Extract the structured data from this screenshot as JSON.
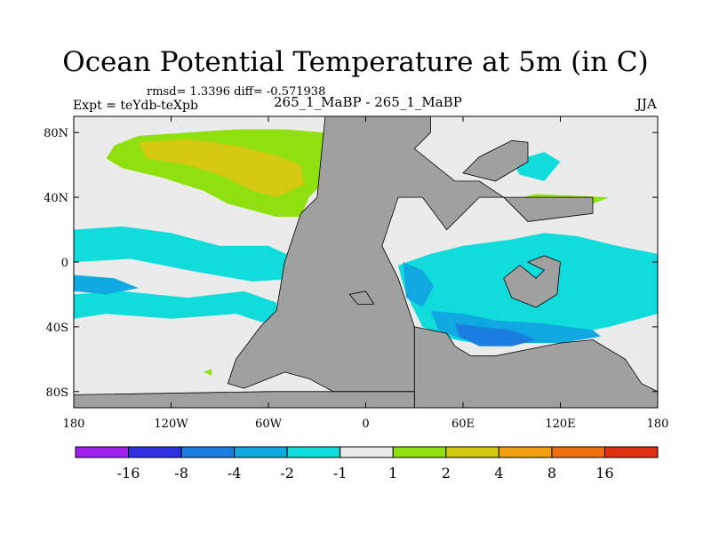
{
  "chart_data": {
    "type": "heatmap",
    "title": "Ocean Potential Temperature at 5m (in C)",
    "stats_text": "rmsd= 1.3396  diff= -0.571938",
    "left_label": "Expt = teYdb-teXpb",
    "center_label": "265_1_MaBP - 265_1_MaBP",
    "right_label": "JJA",
    "xlim": [
      -180,
      180
    ],
    "ylim": [
      -90,
      90
    ],
    "x_ticks": [
      {
        "value": -180,
        "label": "180"
      },
      {
        "value": -120,
        "label": "120W"
      },
      {
        "value": -60,
        "label": "60W"
      },
      {
        "value": 0,
        "label": "0"
      },
      {
        "value": 60,
        "label": "60E"
      },
      {
        "value": 120,
        "label": "120E"
      },
      {
        "value": 180,
        "label": "180"
      }
    ],
    "y_ticks": [
      {
        "value": 80,
        "label": "80N"
      },
      {
        "value": 40,
        "label": "40N"
      },
      {
        "value": 0,
        "label": "0"
      },
      {
        "value": -40,
        "label": "40S"
      },
      {
        "value": -80,
        "label": "80S"
      }
    ],
    "colorbar": {
      "boundaries": [
        -16,
        -8,
        -4,
        -2,
        -1,
        1,
        2,
        4,
        8,
        16
      ],
      "labels": [
        "-16",
        "-8",
        "-4",
        "-2",
        "-1",
        "1",
        "2",
        "4",
        "8",
        "16"
      ],
      "colors": [
        "#a020f0",
        "#3030e0",
        "#1a7ee0",
        "#10a8e0",
        "#10dcdc",
        "#ebebeb",
        "#90e010",
        "#d4c810",
        "#f0a010",
        "#f07010",
        "#e03010"
      ]
    },
    "colors": {
      "land": "#a0a0a0",
      "neutral": "#ebebeb",
      "diff_1_2": "#90e010",
      "diff_2_4": "#d4c810",
      "diff_m2_m1": "#10dcdc",
      "diff_m4_m2": "#10a8e0",
      "diff_m8_m4": "#1a7ee0"
    },
    "regions": [
      {
        "name": "north-pacific-warm",
        "level": "1 to 2",
        "points": [
          [
            -155,
            72
          ],
          [
            -140,
            78
          ],
          [
            -110,
            80
          ],
          [
            -80,
            82
          ],
          [
            -50,
            82
          ],
          [
            -25,
            80
          ],
          [
            -10,
            72
          ],
          [
            -8,
            62
          ],
          [
            -25,
            50
          ],
          [
            -35,
            40
          ],
          [
            -40,
            28
          ],
          [
            -55,
            28
          ],
          [
            -85,
            36
          ],
          [
            -100,
            44
          ],
          [
            -125,
            52
          ],
          [
            -150,
            58
          ],
          [
            -160,
            64
          ]
        ]
      },
      {
        "name": "north-pacific-hot",
        "level": "2 to 4",
        "points": [
          [
            -140,
            74
          ],
          [
            -110,
            76
          ],
          [
            -80,
            72
          ],
          [
            -55,
            66
          ],
          [
            -40,
            60
          ],
          [
            -38,
            48
          ],
          [
            -55,
            40
          ],
          [
            -70,
            44
          ],
          [
            -90,
            54
          ],
          [
            -110,
            60
          ],
          [
            -135,
            64
          ]
        ]
      },
      {
        "name": "east-pacific-cool",
        "level": "-2 to -1",
        "points": [
          [
            -180,
            20
          ],
          [
            -150,
            22
          ],
          [
            -120,
            18
          ],
          [
            -90,
            10
          ],
          [
            -60,
            10
          ],
          [
            -38,
            0
          ],
          [
            -40,
            -10
          ],
          [
            -70,
            -12
          ],
          [
            -110,
            -5
          ],
          [
            -145,
            2
          ],
          [
            -180,
            0
          ]
        ]
      },
      {
        "name": "south-pacific-cool",
        "level": "-2 to -1",
        "points": [
          [
            -180,
            -20
          ],
          [
            -150,
            -18
          ],
          [
            -110,
            -22
          ],
          [
            -75,
            -18
          ],
          [
            -55,
            -25
          ],
          [
            -55,
            -40
          ],
          [
            -80,
            -32
          ],
          [
            -120,
            -35
          ],
          [
            -160,
            -32
          ],
          [
            -180,
            -35
          ]
        ]
      },
      {
        "name": "west-atlantic-cool",
        "level": "-4 to -2",
        "points": [
          [
            -180,
            -8
          ],
          [
            -155,
            -10
          ],
          [
            -140,
            -16
          ],
          [
            -160,
            -20
          ],
          [
            -180,
            -18
          ]
        ]
      },
      {
        "name": "indian-ocean-cool",
        "level": "-2 to -1",
        "points": [
          [
            20,
            -2
          ],
          [
            40,
            5
          ],
          [
            60,
            10
          ],
          [
            90,
            14
          ],
          [
            110,
            18
          ],
          [
            130,
            16
          ],
          [
            155,
            10
          ],
          [
            180,
            5
          ],
          [
            180,
            -32
          ],
          [
            150,
            -40
          ],
          [
            110,
            -48
          ],
          [
            80,
            -52
          ],
          [
            55,
            -48
          ],
          [
            35,
            -40
          ],
          [
            30,
            -30
          ],
          [
            25,
            -20
          ],
          [
            22,
            -10
          ]
        ]
      },
      {
        "name": "indian-ocean-colder",
        "level": "-4 to -2",
        "points": [
          [
            23,
            0
          ],
          [
            35,
            -5
          ],
          [
            42,
            -15
          ],
          [
            35,
            -28
          ],
          [
            25,
            -22
          ]
        ]
      },
      {
        "name": "southern-indian-colder",
        "level": "-4 to -2",
        "points": [
          [
            40,
            -30
          ],
          [
            60,
            -32
          ],
          [
            80,
            -36
          ],
          [
            110,
            -38
          ],
          [
            140,
            -42
          ],
          [
            145,
            -46
          ],
          [
            120,
            -50
          ],
          [
            90,
            -50
          ],
          [
            60,
            -48
          ],
          [
            45,
            -42
          ]
        ]
      },
      {
        "name": "southern-indian-coldest",
        "level": "-8 to -4",
        "points": [
          [
            55,
            -38
          ],
          [
            70,
            -40
          ],
          [
            90,
            -42
          ],
          [
            105,
            -48
          ],
          [
            90,
            -52
          ],
          [
            70,
            -52
          ],
          [
            58,
            -46
          ]
        ]
      },
      {
        "name": "arctic-atlantic-cool",
        "level": "-2 to -1",
        "points": [
          [
            90,
            62
          ],
          [
            110,
            68
          ],
          [
            120,
            62
          ],
          [
            110,
            50
          ],
          [
            95,
            54
          ]
        ]
      },
      {
        "name": "eastern-tropics-cool",
        "level": "-2 to -1",
        "points": [
          [
            125,
            5
          ],
          [
            150,
            8
          ],
          [
            165,
            2
          ],
          [
            145,
            -5
          ],
          [
            128,
            -2
          ]
        ]
      },
      {
        "name": "small-warm-patch",
        "level": "1 to 2",
        "points": [
          [
            88,
            38
          ],
          [
            105,
            42
          ],
          [
            150,
            40
          ],
          [
            140,
            36
          ],
          [
            100,
            33
          ]
        ]
      },
      {
        "name": "tiny-warm-spot",
        "level": "1 to 2",
        "points": [
          [
            -100,
            -68
          ],
          [
            -95,
            -66
          ],
          [
            -95,
            -70
          ]
        ]
      }
    ],
    "land": [
      {
        "name": "central-continent",
        "points": [
          [
            -15,
            90
          ],
          [
            -25,
            90
          ],
          [
            -30,
            40
          ],
          [
            -40,
            30
          ],
          [
            -50,
            0
          ],
          [
            -55,
            -30
          ],
          [
            -65,
            -40
          ],
          [
            -80,
            -60
          ],
          [
            -85,
            -75
          ],
          [
            -75,
            -78
          ],
          [
            -60,
            -72
          ],
          [
            -50,
            -68
          ],
          [
            -35,
            -72
          ],
          [
            -20,
            -80
          ],
          [
            30,
            -80
          ],
          [
            30,
            -40
          ],
          [
            20,
            -10
          ],
          [
            10,
            10
          ],
          [
            20,
            40
          ],
          [
            35,
            40
          ],
          [
            50,
            20
          ],
          [
            60,
            30
          ],
          [
            70,
            40
          ],
          [
            95,
            40
          ],
          [
            140,
            40
          ],
          [
            140,
            30
          ],
          [
            100,
            25
          ],
          [
            85,
            40
          ],
          [
            70,
            50
          ],
          [
            55,
            50
          ],
          [
            30,
            70
          ],
          [
            40,
            80
          ],
          [
            40,
            90
          ]
        ]
      },
      {
        "name": "southeast-landmass",
        "points": [
          [
            30,
            -40
          ],
          [
            50,
            -44
          ],
          [
            55,
            -52
          ],
          [
            65,
            -58
          ],
          [
            80,
            -58
          ],
          [
            100,
            -54
          ],
          [
            120,
            -50
          ],
          [
            140,
            -48
          ],
          [
            160,
            -60
          ],
          [
            170,
            -75
          ],
          [
            180,
            -80
          ],
          [
            180,
            -90
          ],
          [
            30,
            -90
          ]
        ]
      },
      {
        "name": "northern-peninsula",
        "points": [
          [
            60,
            55
          ],
          [
            70,
            65
          ],
          [
            90,
            75
          ],
          [
            100,
            74
          ],
          [
            100,
            62
          ],
          [
            80,
            50
          ]
        ]
      },
      {
        "name": "ring-island",
        "points": [
          [
            100,
            0
          ],
          [
            110,
            4
          ],
          [
            120,
            0
          ],
          [
            118,
            -20
          ],
          [
            105,
            -28
          ],
          [
            90,
            -22
          ],
          [
            85,
            -10
          ],
          [
            95,
            -2
          ],
          [
            105,
            -10
          ],
          [
            110,
            -5
          ]
        ]
      },
      {
        "name": "south-pole-strip",
        "points": [
          [
            -180,
            -82
          ],
          [
            -60,
            -80
          ],
          [
            30,
            -80
          ],
          [
            30,
            -90
          ],
          [
            -180,
            -90
          ]
        ]
      },
      {
        "name": "small-island",
        "points": [
          [
            -10,
            -20
          ],
          [
            0,
            -18
          ],
          [
            5,
            -26
          ],
          [
            -5,
            -26
          ]
        ]
      }
    ]
  }
}
